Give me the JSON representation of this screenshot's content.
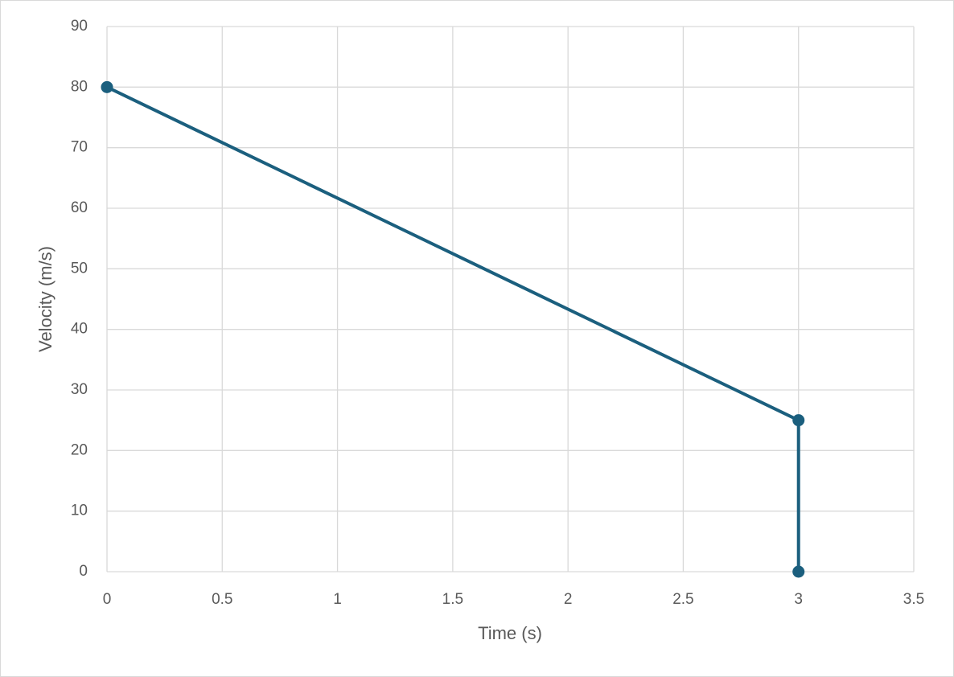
{
  "chart_data": {
    "type": "line",
    "x": [
      0,
      3,
      3
    ],
    "values": [
      80,
      25,
      0
    ],
    "color": "#1b5f7e",
    "x_label": "Time (s)",
    "y_label": "Velocity (m/s)",
    "xlim": [
      0,
      3.5
    ],
    "xticks": [
      0,
      0.5,
      1,
      1.5,
      2,
      2.5,
      3,
      3.5
    ],
    "ylim": [
      0,
      90
    ],
    "yticks": [
      0,
      10,
      20,
      30,
      40,
      50,
      60,
      70,
      80,
      90
    ],
    "grid": true,
    "markers": true
  }
}
